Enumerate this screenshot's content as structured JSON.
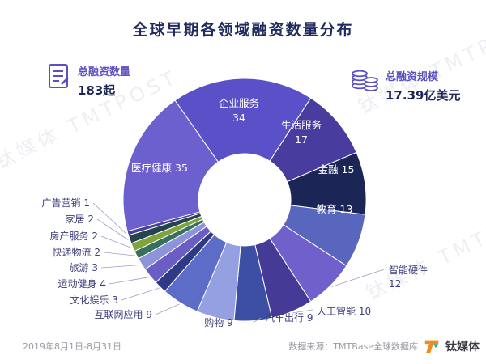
{
  "title": "全球早期各领域融资数量分布",
  "stats": {
    "left": {
      "label": "总融资数量",
      "value": "183起",
      "icon": "document-icon",
      "accent_color": "#5b50c0"
    },
    "right": {
      "label": "总融资规模",
      "value": "17.39亿美元",
      "icon": "coins-icon",
      "accent_color": "#5b50c0"
    }
  },
  "watermark": {
    "text": "钛媒体 TMTPOST"
  },
  "footer": {
    "date_range": "2019年8月1日-8月31日",
    "source": "数据来源：TMTBase全球数据库",
    "brand": "钛媒体"
  },
  "chart_data": {
    "type": "pie",
    "donut": true,
    "title": "全球早期各领域融资数量分布",
    "total_deals": "183起",
    "total_amount": "17.39亿美元",
    "start_angle_deg": -35,
    "legend_position": "none",
    "label_style": "slice-labels-with-leader-lines",
    "series": [
      {
        "name": "企业服务",
        "value": 34,
        "color": "#5a50c8"
      },
      {
        "name": "生活服务",
        "value": 17,
        "color": "#483d9e"
      },
      {
        "name": "金融",
        "value": 15,
        "color": "#1c2656"
      },
      {
        "name": "教育",
        "value": 13,
        "color": "#5867bd"
      },
      {
        "name": "智能硬件",
        "value": 12,
        "color": "#6f60cc"
      },
      {
        "name": "人工智能",
        "value": 10,
        "color": "#453a96"
      },
      {
        "name": "汽车出行",
        "value": 9,
        "color": "#3c4fa4"
      },
      {
        "name": "购物",
        "value": 9,
        "color": "#95a0e2"
      },
      {
        "name": "互联网应用",
        "value": 9,
        "color": "#5d6cc6"
      },
      {
        "name": "文化娱乐",
        "value": 3,
        "color": "#2e3a85"
      },
      {
        "name": "运动健身",
        "value": 4,
        "color": "#6a5ec4"
      },
      {
        "name": "旅游",
        "value": 3,
        "color": "#8d94da"
      },
      {
        "name": "快递物流",
        "value": 2,
        "color": "#37715e"
      },
      {
        "name": "房产服务",
        "value": 2,
        "color": "#7fa43e"
      },
      {
        "name": "家居",
        "value": 2,
        "color": "#24444f"
      },
      {
        "name": "广告营销",
        "value": 1,
        "color": "#4a3f92"
      },
      {
        "name": "医疗健康",
        "value": 35,
        "color": "#6c5fce"
      }
    ]
  }
}
